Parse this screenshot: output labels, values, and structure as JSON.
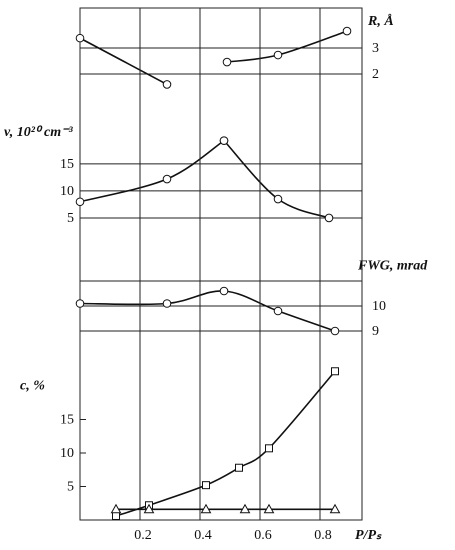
{
  "chart_data": [
    {
      "type": "line",
      "y_label": "R, Å",
      "y_label_side": "right",
      "xlim": [
        0,
        0.94
      ],
      "ylim": [
        1,
        4.5
      ],
      "yticks": [
        2,
        3
      ],
      "grid": true,
      "series": [
        {
          "marker": "circle",
          "color": "#111111",
          "x": [
            0,
            0.29
          ],
          "values": [
            3.38,
            1.6
          ]
        },
        {
          "marker": "circle",
          "color": "#111111",
          "x": [
            0.49,
            0.66,
            0.89
          ],
          "values": [
            2.46,
            2.73,
            3.65
          ]
        }
      ]
    },
    {
      "type": "line",
      "y_label": "v, 10²⁰ cm⁻³",
      "y_label_side": "left",
      "xlim": [
        0,
        0.94
      ],
      "ylim": [
        0,
        27
      ],
      "yticks": [
        5,
        10,
        15
      ],
      "grid": true,
      "series": [
        {
          "marker": "circle",
          "color": "#111111",
          "x": [
            0,
            0.29,
            0.48
          ],
          "values": [
            8,
            12.2,
            19.3
          ]
        },
        {
          "marker": "circle",
          "color": "#111111",
          "x": [
            0.48,
            0.66,
            0.83
          ],
          "values": [
            19.3,
            8.5,
            5
          ]
        }
      ]
    },
    {
      "type": "line",
      "y_label": "FWG, mrad",
      "y_label_side": "right",
      "xlim": [
        0,
        0.94
      ],
      "ylim": [
        8.5,
        11.5
      ],
      "yticks": [
        9,
        10,
        11
      ],
      "ytick_labels_shown": [
        true,
        true,
        false
      ],
      "grid": true,
      "series": [
        {
          "marker": "circle",
          "color": "#111111",
          "x": [
            0,
            0.29,
            0.48,
            0.66,
            0.85
          ],
          "values": [
            10.1,
            10.1,
            10.6,
            9.8,
            9.0
          ]
        }
      ]
    },
    {
      "type": "line",
      "y_label": "c, %",
      "y_label_side": "left",
      "x_label": "P/Pₛ",
      "xlim": [
        0,
        0.94
      ],
      "ylim": [
        0,
        25
      ],
      "yticks": [
        5,
        10,
        15
      ],
      "xticks": [
        0.2,
        0.4,
        0.6,
        0.8
      ],
      "grid": false,
      "series": [
        {
          "marker": "square",
          "color": "#111111",
          "x": [
            0.12,
            0.23,
            0.42,
            0.53,
            0.63,
            0.85
          ],
          "values": [
            0.6,
            2.2,
            5.2,
            7.8,
            10.7,
            22.2
          ]
        },
        {
          "marker": "triangle",
          "color": "#111111",
          "x": [
            0.12,
            0.23,
            0.42,
            0.55,
            0.63,
            0.85
          ],
          "values": [
            1.6,
            1.6,
            1.6,
            1.6,
            1.6,
            1.6
          ]
        }
      ]
    }
  ]
}
